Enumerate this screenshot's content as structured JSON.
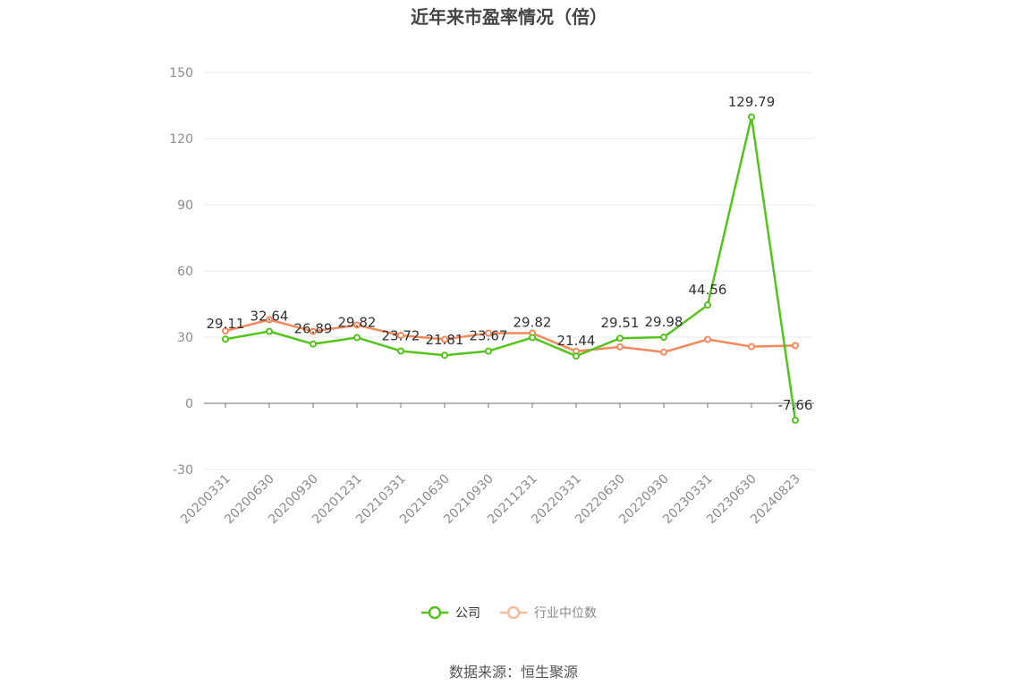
{
  "chart_data": {
    "type": "line",
    "title": "近年来市盈率情况（倍）",
    "categories": [
      "20200331",
      "20200630",
      "20200930",
      "20201231",
      "20210331",
      "20210630",
      "20210930",
      "20211231",
      "20220331",
      "20220630",
      "20220930",
      "20230331",
      "20230630",
      "20240823"
    ],
    "series": [
      {
        "name": "公司",
        "color": "#52c41a",
        "values": [
          29.11,
          32.64,
          26.89,
          29.82,
          23.72,
          21.81,
          23.67,
          29.82,
          21.44,
          29.51,
          29.98,
          44.56,
          129.79,
          -7.66
        ],
        "show_labels": true
      },
      {
        "name": "行业中位数",
        "color": "#f5895b",
        "values": [
          32.8,
          37.9,
          32.6,
          35.5,
          30.8,
          29.0,
          31.8,
          31.8,
          23.6,
          25.6,
          23.2,
          29.0,
          25.7,
          26.2
        ],
        "show_labels": false
      }
    ],
    "ylim": [
      -30,
      150
    ],
    "yticks": [
      -30,
      0,
      30,
      60,
      90,
      120,
      150
    ],
    "grid": true,
    "legend_position": "bottom"
  },
  "footer": {
    "source": "数据来源：恒生聚源"
  }
}
